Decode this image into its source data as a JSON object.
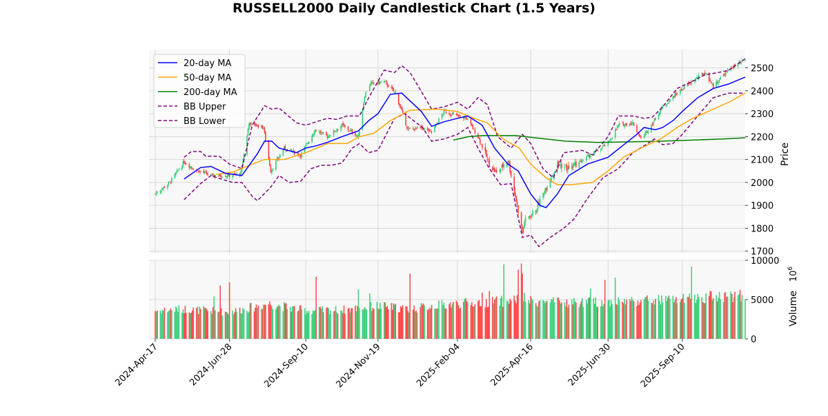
{
  "colors": {
    "up": "#2ecc71",
    "down": "#ff3b3b",
    "ma20": "#0000ff",
    "ma50": "#ffa500",
    "ma200": "#008000",
    "bb": "#800080",
    "grid": "#d0d0d0",
    "panel_bg": "#f8f8f8"
  },
  "chart_data": {
    "type": "candlestick",
    "title": "RUSSELL2000 Daily Candlestick Chart (1.5 Years)",
    "price_axis": {
      "label": "Price",
      "ylim": [
        1690,
        2580
      ],
      "ticks": [
        1700,
        1800,
        1900,
        2000,
        2100,
        2200,
        2300,
        2400,
        2500
      ]
    },
    "volume_axis": {
      "label": "Volume",
      "exponent_label": "10^6",
      "ylim": [
        0,
        10000
      ],
      "ticks": [
        0,
        5000,
        10000
      ]
    },
    "x_axis": {
      "range": [
        "2024-04-11",
        "2025-11-10"
      ],
      "ticks": [
        "2024-Apr-17",
        "2024-Jun-28",
        "2024-Sep-10",
        "2024-Nov-19",
        "2025-Feb-04",
        "2025-Apr-16",
        "2025-Jun-30",
        "2025-Sep-10"
      ],
      "tick_dates": [
        "2024-04-17",
        "2024-06-28",
        "2024-09-10",
        "2024-11-19",
        "2025-02-04",
        "2025-04-16",
        "2025-06-30",
        "2025-09-10"
      ]
    },
    "grid": true,
    "legend": {
      "placement": "top-left",
      "entries": [
        "20-day MA",
        "50-day MA",
        "200-day MA",
        "BB Upper",
        "BB Lower"
      ]
    },
    "close_anchors": [
      [
        "2024-04-17",
        1950
      ],
      [
        "2024-05-01",
        2000
      ],
      [
        "2024-05-15",
        2090
      ],
      [
        "2024-05-24",
        2060
      ],
      [
        "2024-06-10",
        2030
      ],
      [
        "2024-06-28",
        2030
      ],
      [
        "2024-07-09",
        2040
      ],
      [
        "2024-07-17",
        2260
      ],
      [
        "2024-07-31",
        2240
      ],
      [
        "2024-08-07",
        2050
      ],
      [
        "2024-08-20",
        2150
      ],
      [
        "2024-09-05",
        2120
      ],
      [
        "2024-09-19",
        2230
      ],
      [
        "2024-10-01",
        2200
      ],
      [
        "2024-10-15",
        2250
      ],
      [
        "2024-10-31",
        2200
      ],
      [
        "2024-11-06",
        2380
      ],
      [
        "2024-11-11",
        2430
      ],
      [
        "2024-11-25",
        2440
      ],
      [
        "2024-12-06",
        2390
      ],
      [
        "2024-12-18",
        2230
      ],
      [
        "2024-12-31",
        2240
      ],
      [
        "2025-01-10",
        2220
      ],
      [
        "2025-01-22",
        2310
      ],
      [
        "2025-02-04",
        2290
      ],
      [
        "2025-02-13",
        2280
      ],
      [
        "2025-02-24",
        2200
      ],
      [
        "2025-03-07",
        2080
      ],
      [
        "2025-03-14",
        2040
      ],
      [
        "2025-03-25",
        2100
      ],
      [
        "2025-04-03",
        1900
      ],
      [
        "2025-04-08",
        1780
      ],
      [
        "2025-04-10",
        1830
      ],
      [
        "2025-04-21",
        1880
      ],
      [
        "2025-05-02",
        1990
      ],
      [
        "2025-05-12",
        2080
      ],
      [
        "2025-05-23",
        2060
      ],
      [
        "2025-06-03",
        2090
      ],
      [
        "2025-06-13",
        2120
      ],
      [
        "2025-06-30",
        2170
      ],
      [
        "2025-07-10",
        2250
      ],
      [
        "2025-07-24",
        2260
      ],
      [
        "2025-08-01",
        2190
      ],
      [
        "2025-08-08",
        2230
      ],
      [
        "2025-08-22",
        2330
      ],
      [
        "2025-09-05",
        2390
      ],
      [
        "2025-09-19",
        2440
      ],
      [
        "2025-10-02",
        2480
      ],
      [
        "2025-10-10",
        2420
      ],
      [
        "2025-10-20",
        2470
      ],
      [
        "2025-10-27",
        2500
      ],
      [
        "2025-11-10",
        2530
      ]
    ],
    "ma20": [
      [
        "2024-05-15",
        2015
      ],
      [
        "2024-05-31",
        2065
      ],
      [
        "2024-06-10",
        2070
      ],
      [
        "2024-06-24",
        2040
      ],
      [
        "2024-07-10",
        2030
      ],
      [
        "2024-07-25",
        2125
      ],
      [
        "2024-08-01",
        2180
      ],
      [
        "2024-08-08",
        2180
      ],
      [
        "2024-08-15",
        2150
      ],
      [
        "2024-09-01",
        2130
      ],
      [
        "2024-09-10",
        2150
      ],
      [
        "2024-09-20",
        2160
      ],
      [
        "2024-10-01",
        2175
      ],
      [
        "2024-10-15",
        2200
      ],
      [
        "2024-10-31",
        2225
      ],
      [
        "2024-11-10",
        2270
      ],
      [
        "2024-11-19",
        2300
      ],
      [
        "2024-12-01",
        2385
      ],
      [
        "2024-12-12",
        2390
      ],
      [
        "2024-12-31",
        2310
      ],
      [
        "2025-01-10",
        2245
      ],
      [
        "2025-01-22",
        2265
      ],
      [
        "2025-02-04",
        2280
      ],
      [
        "2025-02-14",
        2290
      ],
      [
        "2025-02-28",
        2250
      ],
      [
        "2025-03-12",
        2150
      ],
      [
        "2025-03-25",
        2080
      ],
      [
        "2025-04-04",
        2050
      ],
      [
        "2025-04-16",
        1950
      ],
      [
        "2025-04-25",
        1900
      ],
      [
        "2025-05-01",
        1890
      ],
      [
        "2025-05-12",
        1950
      ],
      [
        "2025-05-23",
        2030
      ],
      [
        "2025-06-10",
        2080
      ],
      [
        "2025-06-30",
        2110
      ],
      [
        "2025-07-14",
        2160
      ],
      [
        "2025-07-28",
        2210
      ],
      [
        "2025-08-04",
        2240
      ],
      [
        "2025-08-15",
        2230
      ],
      [
        "2025-08-22",
        2240
      ],
      [
        "2025-09-01",
        2270
      ],
      [
        "2025-09-10",
        2310
      ],
      [
        "2025-09-25",
        2370
      ],
      [
        "2025-10-10",
        2410
      ],
      [
        "2025-10-25",
        2430
      ],
      [
        "2025-11-10",
        2460
      ]
    ],
    "ma50": [
      [
        "2024-06-15",
        2035
      ],
      [
        "2024-07-01",
        2045
      ],
      [
        "2024-07-20",
        2080
      ],
      [
        "2024-08-01",
        2100
      ],
      [
        "2024-08-20",
        2100
      ],
      [
        "2024-09-10",
        2130
      ],
      [
        "2024-10-01",
        2170
      ],
      [
        "2024-10-20",
        2170
      ],
      [
        "2024-11-01",
        2200
      ],
      [
        "2024-11-15",
        2215
      ],
      [
        "2024-12-01",
        2270
      ],
      [
        "2024-12-20",
        2315
      ],
      [
        "2025-01-15",
        2320
      ],
      [
        "2025-02-04",
        2310
      ],
      [
        "2025-02-20",
        2280
      ],
      [
        "2025-03-05",
        2260
      ],
      [
        "2025-03-20",
        2190
      ],
      [
        "2025-04-05",
        2150
      ],
      [
        "2025-04-16",
        2080
      ],
      [
        "2025-05-01",
        2020
      ],
      [
        "2025-05-12",
        1990
      ],
      [
        "2025-05-25",
        1990
      ],
      [
        "2025-06-15",
        2000
      ],
      [
        "2025-06-30",
        2050
      ],
      [
        "2025-07-15",
        2110
      ],
      [
        "2025-08-01",
        2150
      ],
      [
        "2025-08-20",
        2190
      ],
      [
        "2025-09-05",
        2240
      ],
      [
        "2025-09-20",
        2280
      ],
      [
        "2025-10-10",
        2320
      ],
      [
        "2025-10-25",
        2350
      ],
      [
        "2025-11-10",
        2390
      ]
    ],
    "ma200": [
      [
        "2025-01-31",
        2185
      ],
      [
        "2025-02-15",
        2200
      ],
      [
        "2025-03-01",
        2205
      ],
      [
        "2025-04-01",
        2205
      ],
      [
        "2025-04-20",
        2195
      ],
      [
        "2025-05-20",
        2180
      ],
      [
        "2025-06-20",
        2175
      ],
      [
        "2025-07-20",
        2177
      ],
      [
        "2025-08-20",
        2180
      ],
      [
        "2025-09-20",
        2185
      ],
      [
        "2025-10-20",
        2190
      ],
      [
        "2025-11-10",
        2195
      ]
    ],
    "bb_upper": [
      [
        "2024-05-15",
        2110
      ],
      [
        "2024-05-22",
        2135
      ],
      [
        "2024-05-31",
        2135
      ],
      [
        "2024-06-05",
        2115
      ],
      [
        "2024-06-18",
        2115
      ],
      [
        "2024-06-28",
        2080
      ],
      [
        "2024-07-10",
        2060
      ],
      [
        "2024-07-20",
        2250
      ],
      [
        "2024-08-01",
        2335
      ],
      [
        "2024-08-08",
        2320
      ],
      [
        "2024-08-15",
        2325
      ],
      [
        "2024-09-01",
        2260
      ],
      [
        "2024-09-10",
        2250
      ],
      [
        "2024-09-20",
        2265
      ],
      [
        "2024-10-01",
        2280
      ],
      [
        "2024-10-10",
        2275
      ],
      [
        "2024-10-20",
        2290
      ],
      [
        "2024-11-01",
        2290
      ],
      [
        "2024-11-10",
        2370
      ],
      [
        "2024-11-25",
        2490
      ],
      [
        "2024-12-05",
        2480
      ],
      [
        "2024-12-12",
        2510
      ],
      [
        "2024-12-20",
        2480
      ],
      [
        "2025-01-01",
        2390
      ],
      [
        "2025-01-10",
        2320
      ],
      [
        "2025-01-22",
        2330
      ],
      [
        "2025-02-04",
        2350
      ],
      [
        "2025-02-14",
        2320
      ],
      [
        "2025-02-24",
        2370
      ],
      [
        "2025-03-05",
        2340
      ],
      [
        "2025-03-15",
        2200
      ],
      [
        "2025-03-28",
        2150
      ],
      [
        "2025-04-08",
        2210
      ],
      [
        "2025-04-16",
        2170
      ],
      [
        "2025-04-28",
        2060
      ],
      [
        "2025-05-08",
        2020
      ],
      [
        "2025-05-18",
        2130
      ],
      [
        "2025-06-05",
        2140
      ],
      [
        "2025-06-15",
        2120
      ],
      [
        "2025-06-30",
        2200
      ],
      [
        "2025-07-10",
        2290
      ],
      [
        "2025-07-24",
        2290
      ],
      [
        "2025-08-04",
        2280
      ],
      [
        "2025-08-12",
        2285
      ],
      [
        "2025-08-22",
        2330
      ],
      [
        "2025-09-05",
        2410
      ],
      [
        "2025-09-19",
        2440
      ],
      [
        "2025-10-02",
        2470
      ],
      [
        "2025-10-15",
        2480
      ],
      [
        "2025-10-25",
        2490
      ],
      [
        "2025-11-10",
        2540
      ]
    ],
    "bb_lower": [
      [
        "2024-05-15",
        1925
      ],
      [
        "2024-05-31",
        1995
      ],
      [
        "2024-06-10",
        2030
      ],
      [
        "2024-06-20",
        2015
      ],
      [
        "2024-07-01",
        2000
      ],
      [
        "2024-07-10",
        2000
      ],
      [
        "2024-07-20",
        1940
      ],
      [
        "2024-07-25",
        1920
      ],
      [
        "2024-08-07",
        1980
      ],
      [
        "2024-08-15",
        2030
      ],
      [
        "2024-08-25",
        2000
      ],
      [
        "2024-09-05",
        2005
      ],
      [
        "2024-09-15",
        2060
      ],
      [
        "2024-09-25",
        2075
      ],
      [
        "2024-10-05",
        2075
      ],
      [
        "2024-10-15",
        2085
      ],
      [
        "2024-10-25",
        2150
      ],
      [
        "2024-11-01",
        2170
      ],
      [
        "2024-11-10",
        2130
      ],
      [
        "2024-11-19",
        2140
      ],
      [
        "2024-12-05",
        2280
      ],
      [
        "2024-12-15",
        2300
      ],
      [
        "2025-01-01",
        2240
      ],
      [
        "2025-01-10",
        2180
      ],
      [
        "2025-01-22",
        2190
      ],
      [
        "2025-02-04",
        2210
      ],
      [
        "2025-02-14",
        2240
      ],
      [
        "2025-02-24",
        2150
      ],
      [
        "2025-03-07",
        2060
      ],
      [
        "2025-03-18",
        1990
      ],
      [
        "2025-03-28",
        1995
      ],
      [
        "2025-04-08",
        1760
      ],
      [
        "2025-04-16",
        1770
      ],
      [
        "2025-04-24",
        1720
      ],
      [
        "2025-05-05",
        1760
      ],
      [
        "2025-05-18",
        1800
      ],
      [
        "2025-05-28",
        1840
      ],
      [
        "2025-06-10",
        1930
      ],
      [
        "2025-06-25",
        2020
      ],
      [
        "2025-07-10",
        2060
      ],
      [
        "2025-07-24",
        2130
      ],
      [
        "2025-08-04",
        2160
      ],
      [
        "2025-08-14",
        2190
      ],
      [
        "2025-08-22",
        2165
      ],
      [
        "2025-09-01",
        2170
      ],
      [
        "2025-09-10",
        2210
      ],
      [
        "2025-09-25",
        2290
      ],
      [
        "2025-10-10",
        2370
      ],
      [
        "2025-10-25",
        2390
      ],
      [
        "2025-11-10",
        2390
      ]
    ],
    "volume_anchors": [
      [
        "2024-04-17",
        3600
      ],
      [
        "2024-05-15",
        3800
      ],
      [
        "2024-06-28",
        3400
      ],
      [
        "2024-08-05",
        4500
      ],
      [
        "2024-09-10",
        3600
      ],
      [
        "2024-10-15",
        3700
      ],
      [
        "2024-11-19",
        4200
      ],
      [
        "2024-12-20",
        3800
      ],
      [
        "2025-01-15",
        4300
      ],
      [
        "2025-02-20",
        4600
      ],
      [
        "2025-03-20",
        4800
      ],
      [
        "2025-04-08",
        5200
      ],
      [
        "2025-04-16",
        4800
      ],
      [
        "2025-05-15",
        4600
      ],
      [
        "2025-06-30",
        4700
      ],
      [
        "2025-08-01",
        4900
      ],
      [
        "2025-09-10",
        5000
      ],
      [
        "2025-10-15",
        5500
      ],
      [
        "2025-11-10",
        5500
      ]
    ],
    "volume_spikes": [
      [
        "2024-06-19",
        6800
      ],
      [
        "2024-06-28",
        7200
      ],
      [
        "2024-06-13",
        5400
      ],
      [
        "2024-09-20",
        7900
      ],
      [
        "2024-12-20",
        8300
      ],
      [
        "2024-10-31",
        6300
      ],
      [
        "2024-11-11",
        5800
      ],
      [
        "2025-03-21",
        9500
      ],
      [
        "2025-04-04",
        8800
      ],
      [
        "2025-04-07",
        9600
      ],
      [
        "2025-04-08",
        8300
      ],
      [
        "2025-06-27",
        7500
      ],
      [
        "2025-06-13",
        6400
      ],
      [
        "2025-07-07",
        7800
      ],
      [
        "2025-09-19",
        9200
      ],
      [
        "2025-03-07",
        6100
      ],
      [
        "2025-02-28",
        5900
      ]
    ]
  }
}
